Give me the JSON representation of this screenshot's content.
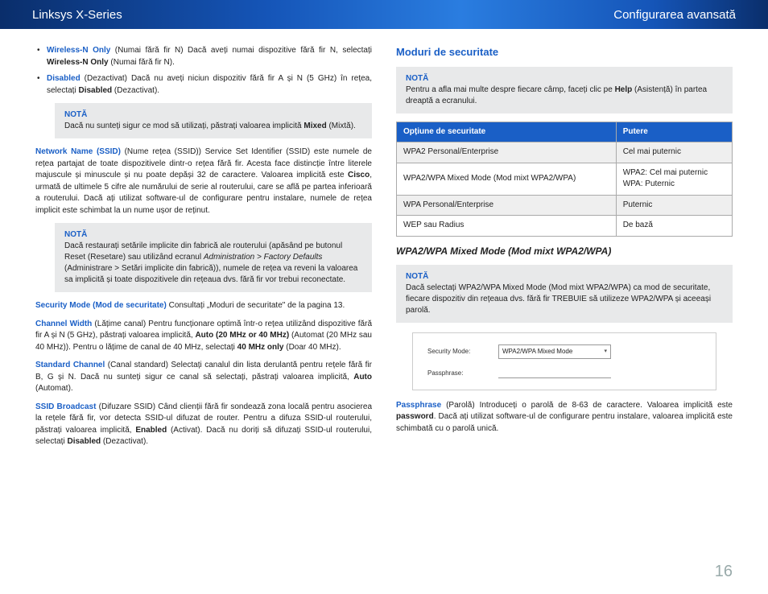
{
  "header": {
    "left": "Linksys X-Series",
    "right": "Configurarea avansată"
  },
  "left": {
    "bullets": [
      {
        "lead": "Wireless-N Only",
        "tail1": "  (Numai fără fir N) Dacă aveți numai dispozitive fără fir N, selectați ",
        "b1": "Wireless-N Only",
        "tail2": " (Numai fără fir N)."
      },
      {
        "lead": "Disabled",
        "tail1": "  (Dezactivat) Dacă nu aveți niciun dispozitiv fără fir A și N (5 GHz) în rețea, selectați ",
        "b1": "Disabled",
        "tail2": " (Dezactivat)."
      }
    ],
    "note1": {
      "title": "NOTĂ",
      "body1": " Dacă nu sunteți sigur ce mod să utilizați, păstrați valoarea implicită ",
      "b": "Mixed",
      "body2": " (Mixtă)."
    },
    "ssid": {
      "lead": "Network Name (SSID)",
      "body": " (Nume rețea (SSID)) Service Set Identifier (SSID) este numele de rețea partajat de toate dispozitivele dintr-o rețea fără fir. Acesta face distincție între literele majuscule și minuscule și nu poate depăși 32 de caractere. Valoarea implicită este ",
      "b1": "Cisco",
      "body2": ", urmată de ultimele 5 cifre ale numărului de serie al routerului, care se află pe partea inferioară a routerului. Dacă ați utilizat software-ul de configurare pentru instalare, numele de rețea implicit este schimbat la un nume ușor de reținut."
    },
    "note2": {
      "title": "NOTĂ",
      "body1": "Dacă restaurați setările implicite din fabrică ale routerului (apăsând pe butonul Reset (Resetare) sau utilizând ecranul ",
      "i1": "Administration > Factory Defaults",
      "body2": " (Administrare > Setări implicite din fabrică)), numele de rețea va reveni la valoarea sa implicită și toate dispozitivele din rețeaua dvs. fără fir vor trebui reconectate."
    },
    "secmode": {
      "lead": "Security Mode (Mod de securitate)",
      "body": "  Consultați „Moduri de securitate\" de la pagina 13."
    },
    "chwidth": {
      "lead": "Channel Width",
      "body1": "  (Lățime canal) Pentru funcționare optimă într-o rețea utilizând dispozitive fără fir A și N (5 GHz), păstrați valoarea implicită, ",
      "b1": "Auto (20 MHz or 40 MHz)",
      "body2": " (Automat (20 MHz sau 40 MHz)). Pentru o lățime de canal de 40 MHz, selectați ",
      "b2": "40 MHz only",
      "body3": " (Doar 40 MHz)."
    },
    "stdch": {
      "lead": "Standard Channel",
      "body1": " (Canal standard) Selectați canalul din lista derulantă pentru rețele fără fir B, G și N. Dacă nu sunteți sigur ce canal să selectați, păstrați valoarea implicită, ",
      "b1": "Auto",
      "body2": " (Automat)."
    },
    "ssidb": {
      "lead": "SSID Broadcast",
      "body1": " (Difuzare SSID) Când clienții fără fir sondează zona locală pentru asocierea la rețele fără fir, vor detecta SSID-ul difuzat de router. Pentru a difuza SSID-ul routerului, păstrați valoarea implicită, ",
      "b1": "Enabled",
      "body2": " (Activat). Dacă nu doriți să difuzați SSID-ul routerului, selectați ",
      "b2": "Disabled",
      "body3": " (Dezactivat)."
    }
  },
  "right": {
    "h1": "Moduri de securitate",
    "note1": {
      "title": "NOTĂ",
      "body1": "Pentru a afla mai multe despre fiecare câmp, faceți clic pe ",
      "b": "Help",
      "body2": " (Asistență) în partea dreaptă a ecranului."
    },
    "table": {
      "headers": [
        "Opțiune de securitate",
        "Putere"
      ],
      "rows": [
        [
          "WPA2 Personal/Enterprise",
          "Cel mai puternic"
        ],
        [
          "WPA2/WPA Mixed Mode (Mod mixt WPA2/WPA)",
          "WPA2: Cel mai puternic\nWPA: Puternic"
        ],
        [
          "WPA Personal/Enterprise",
          "Puternic"
        ],
        [
          "WEP sau Radius",
          "De bază"
        ]
      ]
    },
    "h2": "WPA2/WPA Mixed Mode (Mod mixt WPA2/WPA)",
    "note2": {
      "title": "NOTĂ",
      "body": "Dacă selectați WPA2/WPA Mixed Mode (Mod mixt WPA2/WPA) ca mod de securitate, fiecare dispozitiv din rețeaua dvs. fără fir TREBUIE să utilizeze WPA2/WPA și aceeași parolă."
    },
    "ui": {
      "label1": "Security Mode:",
      "value1": "WPA2/WPA Mixed Mode",
      "label2": "Passphrase:"
    },
    "pass": {
      "lead": "Passphrase",
      "body1": " (Parolă) Introduceți o parolă de 8-63 de caractere. Valoarea implicită este ",
      "b1": "password",
      "body2": ". Dacă ați utilizat software-ul de configurare pentru instalare, valoarea implicită este schimbată cu o parolă unică."
    }
  },
  "page_number": "16",
  "colors": {
    "brand_blue": "#1a5fc6",
    "note_bg": "#e8e9ea",
    "page_num": "#99aabb"
  }
}
